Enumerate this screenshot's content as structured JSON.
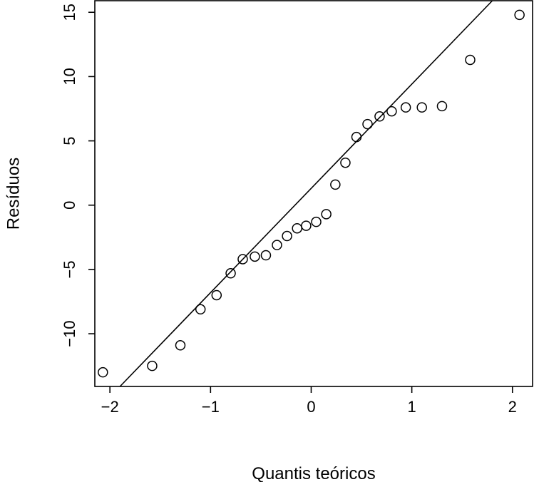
{
  "chart_data": {
    "type": "scatter",
    "title": "",
    "xlabel": "Quantis teóricos",
    "ylabel": "Resíduos",
    "xlim": [
      -2.15,
      2.2
    ],
    "ylim": [
      -14.1,
      15.9
    ],
    "xticks": [
      -2,
      -1,
      0,
      1,
      2
    ],
    "xtick_labels": [
      "−2",
      "−1",
      "0",
      "1",
      "2"
    ],
    "yticks": [
      -10,
      -5,
      0,
      5,
      10,
      15
    ],
    "ytick_labels": [
      "−10",
      "−5",
      "0",
      "5",
      "10",
      "15"
    ],
    "grid": false,
    "series": [
      {
        "points": [
          {
            "x": -2.07,
            "y": -13.0
          },
          {
            "x": -1.58,
            "y": -12.5
          },
          {
            "x": -1.3,
            "y": -10.9
          },
          {
            "x": -1.1,
            "y": -8.1
          },
          {
            "x": -0.94,
            "y": -7.0
          },
          {
            "x": -0.8,
            "y": -5.3
          },
          {
            "x": -0.68,
            "y": -4.2
          },
          {
            "x": -0.56,
            "y": -4.0
          },
          {
            "x": -0.45,
            "y": -3.9
          },
          {
            "x": -0.34,
            "y": -3.1
          },
          {
            "x": -0.24,
            "y": -2.4
          },
          {
            "x": -0.14,
            "y": -1.8
          },
          {
            "x": -0.05,
            "y": -1.6
          },
          {
            "x": 0.05,
            "y": -1.3
          },
          {
            "x": 0.15,
            "y": -0.7
          },
          {
            "x": 0.24,
            "y": 1.6
          },
          {
            "x": 0.34,
            "y": 3.3
          },
          {
            "x": 0.45,
            "y": 5.3
          },
          {
            "x": 0.56,
            "y": 6.3
          },
          {
            "x": 0.68,
            "y": 6.9
          },
          {
            "x": 0.8,
            "y": 7.3
          },
          {
            "x": 0.94,
            "y": 7.6
          },
          {
            "x": 1.1,
            "y": 7.6
          },
          {
            "x": 1.3,
            "y": 7.7
          },
          {
            "x": 1.58,
            "y": 11.3
          },
          {
            "x": 2.07,
            "y": 14.8
          }
        ]
      }
    ],
    "reference_line": {
      "x1": -1.9,
      "y1": -14.1,
      "x2": 1.8,
      "y2": 15.9
    }
  }
}
